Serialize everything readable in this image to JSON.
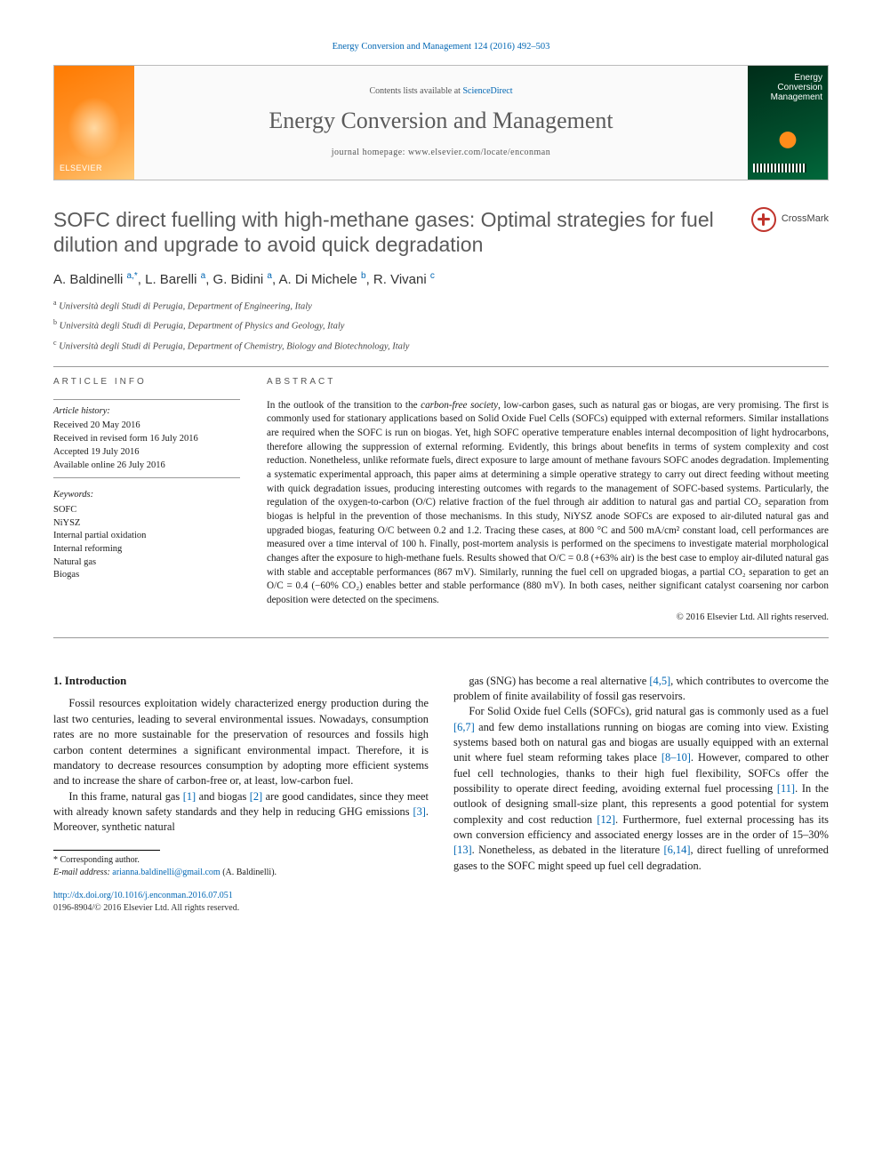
{
  "citation": "Energy Conversion and Management 124 (2016) 492–503",
  "header": {
    "contents_label": "Contents lists available at ",
    "contents_link": "ScienceDirect",
    "journal": "Energy Conversion and Management",
    "homepage_label": "journal homepage: ",
    "homepage_url": "www.elsevier.com/locate/enconman",
    "publisher": "ELSEVIER",
    "cover_title": "Energy Conversion Management"
  },
  "article": {
    "title": "SOFC direct fuelling with high-methane gases: Optimal strategies for fuel dilution and upgrade to avoid quick degradation",
    "crossmark": "CrossMark",
    "authors_html": "A. Baldinelli <span class='sup'>a,*</span>, L. Barelli <span class='sup'>a</span>, G. Bidini <span class='sup'>a</span>, A. Di Michele <span class='sup'>b</span>, R. Vivani <span class='sup'>c</span>",
    "affiliations": [
      {
        "sup": "a",
        "text": "Università degli Studi di Perugia, Department of Engineering, Italy"
      },
      {
        "sup": "b",
        "text": "Università degli Studi di Perugia, Department of Physics and Geology, Italy"
      },
      {
        "sup": "c",
        "text": "Università degli Studi di Perugia, Department of Chemistry, Biology and Biotechnology, Italy"
      }
    ]
  },
  "info": {
    "heading": "ARTICLE INFO",
    "history_label": "Article history:",
    "history": [
      "Received 20 May 2016",
      "Received in revised form 16 July 2016",
      "Accepted 19 July 2016",
      "Available online 26 July 2016"
    ],
    "keywords_label": "Keywords:",
    "keywords": [
      "SOFC",
      "NiYSZ",
      "Internal partial oxidation",
      "Internal reforming",
      "Natural gas",
      "Biogas"
    ]
  },
  "abstract": {
    "heading": "ABSTRACT",
    "text": "In the outlook of the transition to the carbon-free society, low-carbon gases, such as natural gas or biogas, are very promising. The first is commonly used for stationary applications based on Solid Oxide Fuel Cells (SOFCs) equipped with external reformers. Similar installations are required when the SOFC is run on biogas. Yet, high SOFC operative temperature enables internal decomposition of light hydrocarbons, therefore allowing the suppression of external reforming. Evidently, this brings about benefits in terms of system complexity and cost reduction. Nonetheless, unlike reformate fuels, direct exposure to large amount of methane favours SOFC anodes degradation. Implementing a systematic experimental approach, this paper aims at determining a simple operative strategy to carry out direct feeding without meeting with quick degradation issues, producing interesting outcomes with regards to the management of SOFC-based systems. Particularly, the regulation of the oxygen-to-carbon (O/C) relative fraction of the fuel through air addition to natural gas and partial CO₂ separation from biogas is helpful in the prevention of those mechanisms. In this study, NiYSZ anode SOFCs are exposed to air-diluted natural gas and upgraded biogas, featuring O/C between 0.2 and 1.2. Tracing these cases, at 800 °C and 500 mA/cm² constant load, cell performances are measured over a time interval of 100 h. Finally, post-mortem analysis is performed on the specimens to investigate material morphological changes after the exposure to high-methane fuels. Results showed that O/C = 0.8 (+63% air) is the best case to employ air-diluted natural gas with stable and acceptable performances (867 mV). Similarly, running the fuel cell on upgraded biogas, a partial CO₂ separation to get an O/C = 0.4 (−60% CO₂) enables better and stable performance (880 mV). In both cases, neither significant catalyst coarsening nor carbon deposition were detected on the specimens.",
    "copyright": "© 2016 Elsevier Ltd. All rights reserved."
  },
  "body": {
    "section_heading": "1. Introduction",
    "p1": "Fossil resources exploitation widely characterized energy production during the last two centuries, leading to several environmental issues. Nowadays, consumption rates are no more sustainable for the preservation of resources and fossils high carbon content determines a significant environmental impact. Therefore, it is mandatory to decrease resources consumption by adopting more efficient systems and to increase the share of carbon-free or, at least, low-carbon fuel.",
    "p2_a": "In this frame, natural gas ",
    "p2_b": " and biogas ",
    "p2_c": " are good candidates, since they meet with already known safety standards and they help in reducing GHG emissions ",
    "p2_d": ". Moreover, synthetic natural",
    "r1": "[1]",
    "r2": "[2]",
    "r3": "[3]",
    "p3_a": "gas (SNG) has become a real alternative ",
    "p3_b": ", which contributes to overcome the problem of finite availability of fossil gas reservoirs.",
    "r45": "[4,5]",
    "p4_a": "For Solid Oxide fuel Cells (SOFCs), grid natural gas is commonly used as a fuel ",
    "p4_b": " and few demo installations running on biogas are coming into view. Existing systems based both on natural gas and biogas are usually equipped with an external unit where fuel steam reforming takes place ",
    "p4_c": ". However, compared to other fuel cell technologies, thanks to their high fuel flexibility, SOFCs offer the possibility to operate direct feeding, avoiding external fuel processing ",
    "p4_d": ". In the outlook of designing small-size plant, this represents a good potential for system complexity and cost reduction ",
    "p4_e": ". Furthermore, fuel external processing has its own conversion efficiency and associated energy losses are in the order of 15–30% ",
    "p4_f": ". Nonetheless, as debated in the literature ",
    "p4_g": ", direct fuelling of unreformed gases to the SOFC might speed up fuel cell degradation.",
    "r67": "[6,7]",
    "r810": "[8–10]",
    "r11": "[11]",
    "r12": "[12]",
    "r13": "[13]",
    "r614": "[6,14]"
  },
  "footnotes": {
    "corresponding": "* Corresponding author.",
    "email_label": "E-mail address: ",
    "email": "arianna.baldinelli@gmail.com",
    "email_name": " (A. Baldinelli)."
  },
  "doi": "http://dx.doi.org/10.1016/j.enconman.2016.07.051",
  "issn_copyright": "0196-8904/© 2016 Elsevier Ltd. All rights reserved."
}
